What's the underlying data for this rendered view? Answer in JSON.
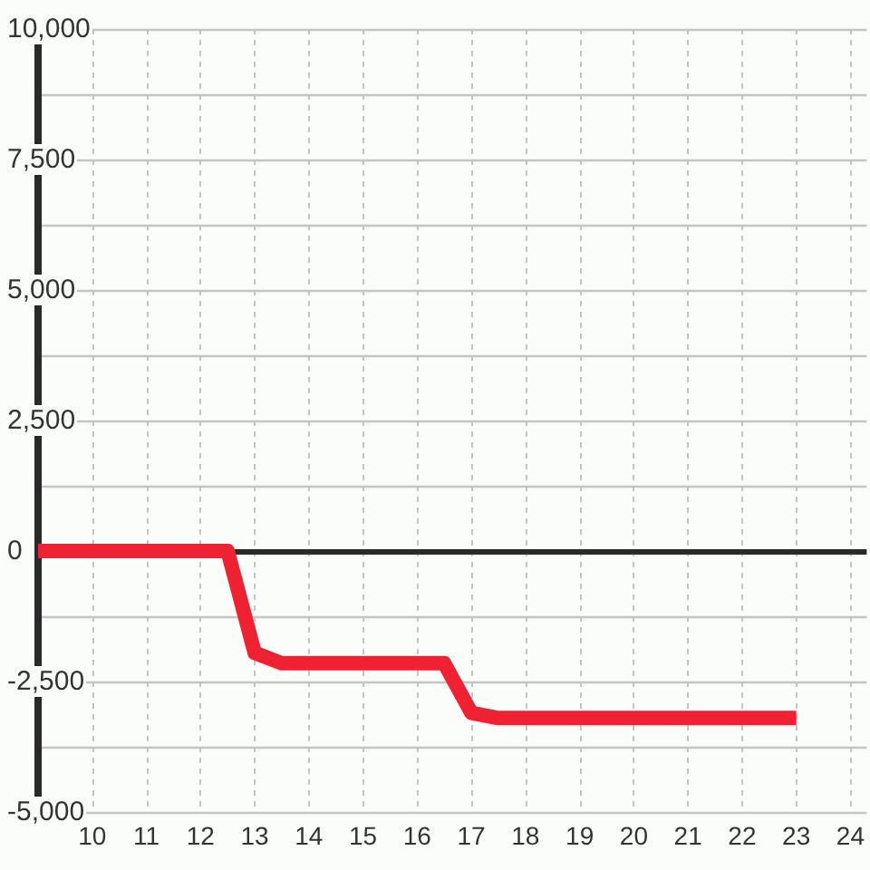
{
  "chart_data": {
    "type": "line",
    "x": [
      9,
      12.5,
      13,
      13.5,
      16.5,
      17,
      17.5,
      23
    ],
    "series": [
      {
        "color": "#ee2233",
        "values": [
          0,
          0,
          -1950,
          -2150,
          -2150,
          -3100,
          -3200,
          -3200
        ]
      }
    ],
    "xlim": [
      9,
      24.3
    ],
    "xticks": [
      10,
      11,
      12,
      13,
      14,
      15,
      16,
      17,
      18,
      19,
      20,
      21,
      22,
      23,
      24
    ],
    "ylim": [
      -5000,
      10000
    ],
    "yticks": [
      {
        "value": -5000,
        "label": "-5,000"
      },
      {
        "value": -3750,
        "label": null
      },
      {
        "value": -2500,
        "label": "-2,500"
      },
      {
        "value": -1250,
        "label": null
      },
      0,
      {
        "value": 1250,
        "label": null
      },
      {
        "value": 2500,
        "label": "2,500"
      },
      {
        "value": 3750,
        "label": null
      },
      {
        "value": 5000,
        "label": "5,000"
      },
      {
        "value": 6250,
        "label": null
      },
      {
        "value": 7500,
        "label": "7,500"
      },
      {
        "value": 8750,
        "label": null
      },
      {
        "value": 10000,
        "label": "10,000"
      }
    ],
    "grid": true
  }
}
